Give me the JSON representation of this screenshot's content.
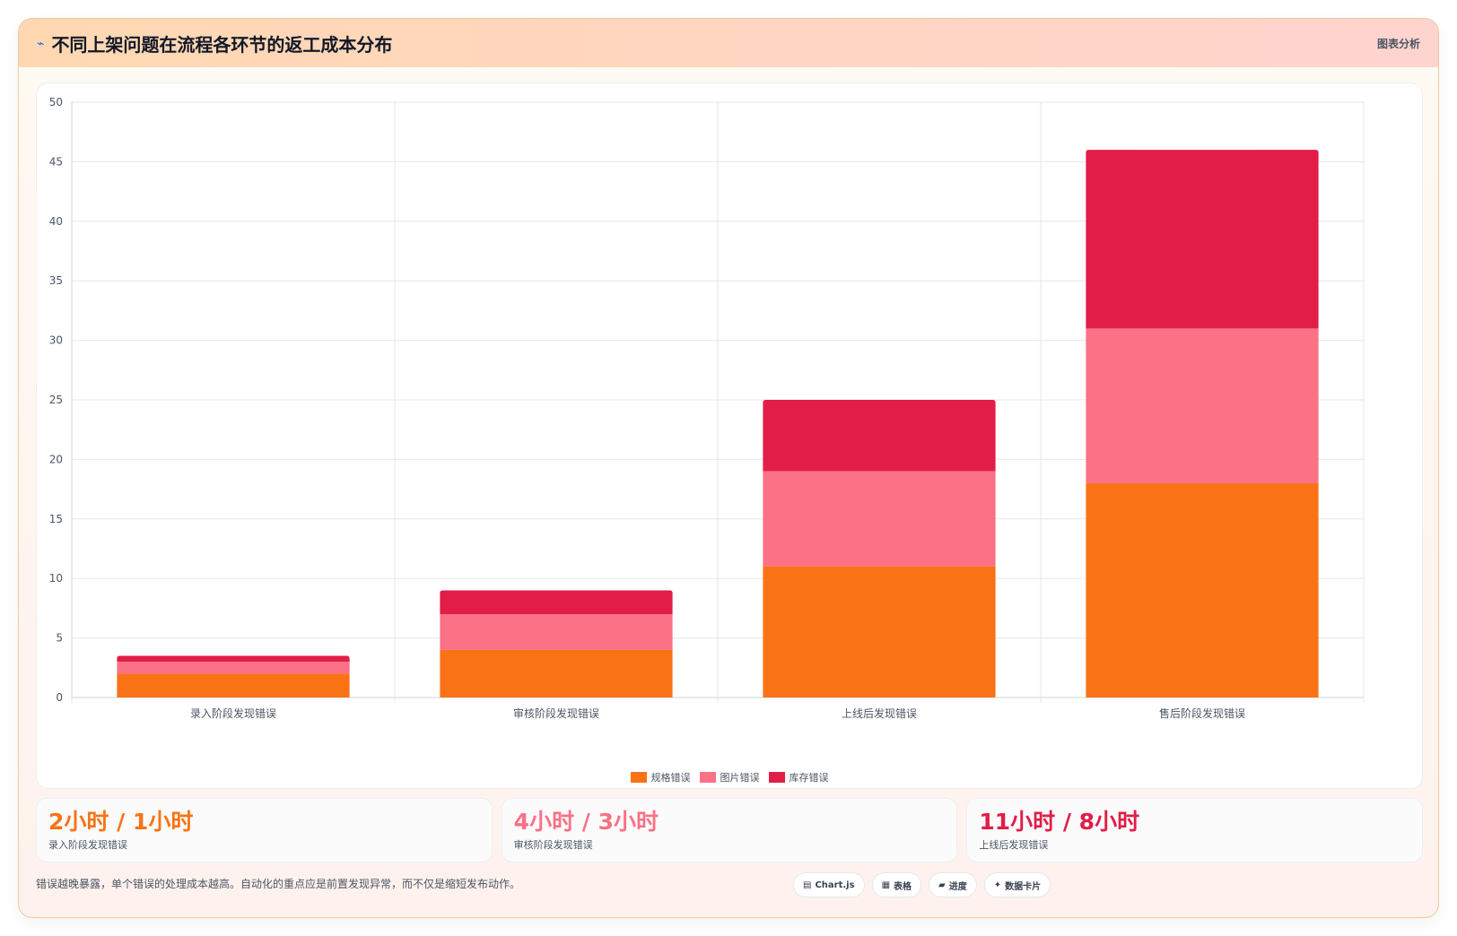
{
  "header": {
    "icon": "⌁",
    "title": "不同上架问题在流程各环节的返工成本分布",
    "tag": "图表分析"
  },
  "chart_data": {
    "type": "bar",
    "stacked": true,
    "categories": [
      "录入阶段发现错误",
      "审核阶段发现错误",
      "上线后发现错误",
      "售后阶段发现错误"
    ],
    "series": [
      {
        "name": "规格错误",
        "color": "#f97316",
        "values": [
          2,
          4,
          11,
          18
        ]
      },
      {
        "name": "图片错误",
        "color": "#fb7185",
        "values": [
          1,
          3,
          8,
          13
        ]
      },
      {
        "name": "库存错误",
        "color": "#e11d48",
        "values": [
          0.5,
          2,
          6,
          15
        ]
      }
    ],
    "ylim": [
      0,
      50
    ],
    "yticks": [
      0,
      5,
      10,
      15,
      20,
      25,
      30,
      35,
      40,
      45,
      50
    ],
    "grid": true,
    "legend": "bottom"
  },
  "stats": [
    {
      "value": "2小时 / 1小时",
      "label": "录入阶段发现错误",
      "color": "#f97316"
    },
    {
      "value": "4小时 / 3小时",
      "label": "审核阶段发现错误",
      "color": "#fb7185"
    },
    {
      "value": "11小时 / 8小时",
      "label": "上线后发现错误",
      "color": "#e11d48"
    }
  ],
  "footer": {
    "note": "错误越晚暴露，单个错误的处理成本越高。自动化的重点应是前置发现异常，而不仅是缩短发布动作。",
    "chips": [
      {
        "icon": "chart-icon",
        "label": "Chart.js"
      },
      {
        "icon": "table-icon",
        "label": "表格"
      },
      {
        "icon": "progress-icon",
        "label": "进度"
      },
      {
        "icon": "sparkle-icon",
        "label": "数据卡片"
      }
    ]
  }
}
